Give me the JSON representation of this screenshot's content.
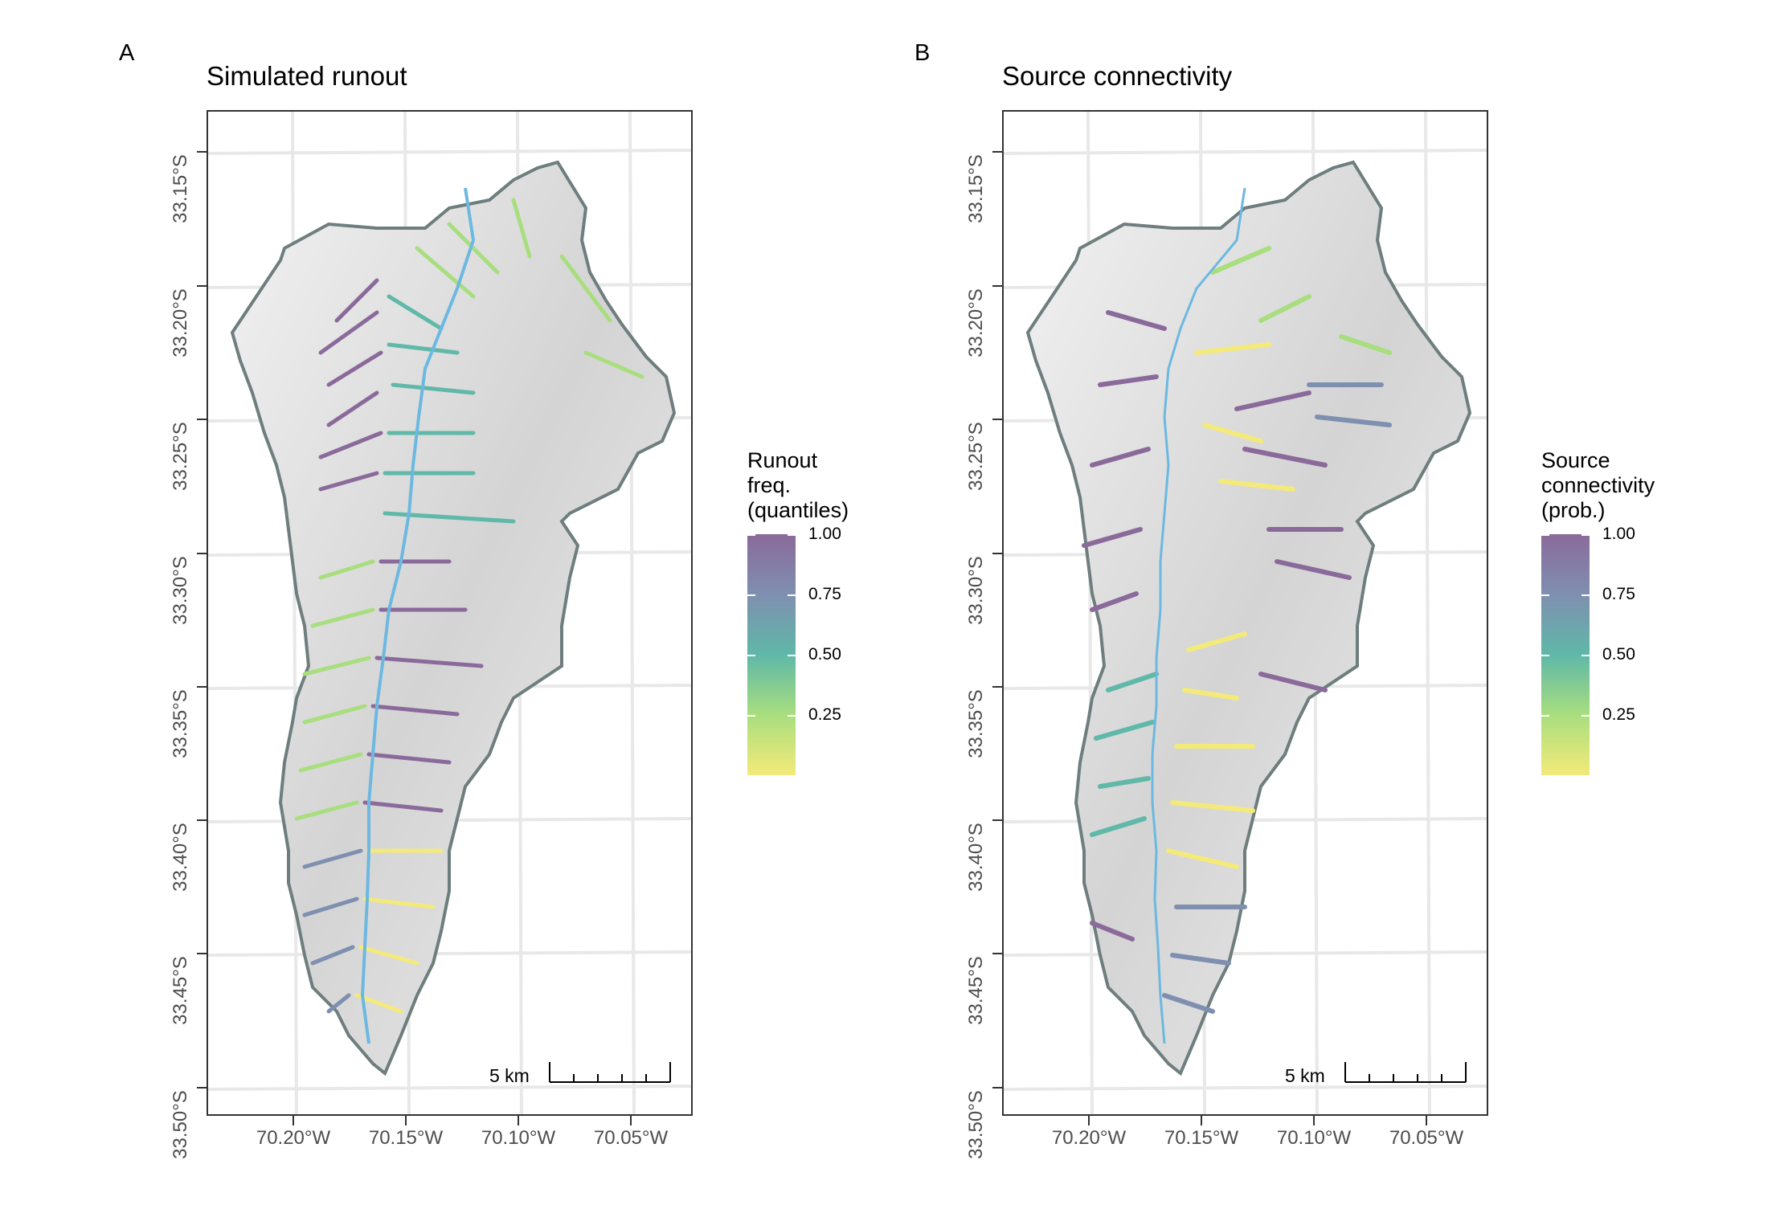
{
  "panels": [
    {
      "letter": "A",
      "title": "Simulated runout",
      "y_ticks": [
        "33.15°S",
        "33.20°S",
        "33.25°S",
        "33.30°S",
        "33.35°S",
        "33.40°S",
        "33.45°S",
        "33.50°S"
      ],
      "x_ticks": [
        "70.20°W",
        "70.15°W",
        "70.10°W",
        "70.05°W"
      ],
      "scalebar": "5 km",
      "legend": {
        "title": "Runout\nfreq.\n(quantiles)",
        "ticks": [
          "1.00",
          "0.75",
          "0.50",
          "0.25"
        ]
      }
    },
    {
      "letter": "B",
      "title": "Source connectivity",
      "y_ticks": [
        "33.15°S",
        "33.20°S",
        "33.25°S",
        "33.30°S",
        "33.35°S",
        "33.40°S",
        "33.45°S",
        "33.50°S"
      ],
      "x_ticks": [
        "70.20°W",
        "70.15°W",
        "70.10°W",
        "70.05°W"
      ],
      "scalebar": "5 km",
      "legend": {
        "title": "Source\nconnectivity\n(prob.)",
        "ticks": [
          "1.00",
          "0.75",
          "0.50",
          "0.25"
        ]
      }
    }
  ],
  "colors": {
    "viridis_top": "#8a6a9a",
    "viridis_mid_high": "#7f8fb0",
    "viridis_mid": "#5fb8a8",
    "viridis_low": "#a8de7e",
    "viridis_bottom": "#f3ea7a",
    "river": "#6cb8e0",
    "outline": "#6e7d7d",
    "hillshade": "#d9d9d9"
  }
}
